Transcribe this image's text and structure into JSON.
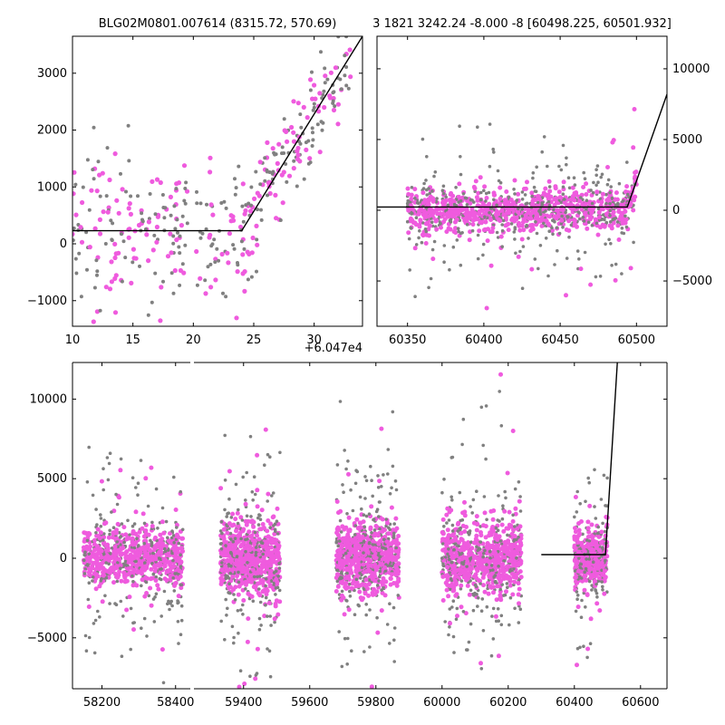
{
  "colors": {
    "gray": "#808080",
    "magenta": "#ef5bde",
    "line": "#000000"
  },
  "chart_data": [
    {
      "type": "scatter",
      "panel": "top-left",
      "title": "BLG02M0801.007614 (8315.72, 570.69)",
      "xlim": [
        10,
        34
      ],
      "ylim": [
        -1450,
        3650
      ],
      "x_offset_label": "+6.047e4",
      "xticks": [
        10,
        15,
        20,
        25,
        30
      ],
      "yticks": [
        -1000,
        0,
        1000,
        2000,
        3000
      ],
      "model_line": [
        [
          10,
          230
        ],
        [
          24,
          230
        ],
        [
          34,
          3650
        ]
      ]
    },
    {
      "type": "scatter",
      "panel": "top-right",
      "title": "3 1821 3242.24 -8.000 -8 [60498.225, 60501.932]",
      "xlim": [
        60330,
        60520
      ],
      "ylim": [
        -8200,
        12300
      ],
      "xticks": [
        60350,
        60400,
        60450,
        60500
      ],
      "yticks": [
        -5000,
        0,
        5000,
        10000
      ],
      "model_line": [
        [
          60330,
          230
        ],
        [
          60494,
          230
        ],
        [
          60520,
          8200
        ]
      ]
    },
    {
      "type": "scatter",
      "panel": "bottom",
      "title": "",
      "segments": [
        {
          "xlim": [
            58120,
            58440
          ],
          "xticks": [
            58200,
            58400
          ]
        },
        {
          "xlim": [
            59250,
            60680
          ],
          "xticks": [
            59400,
            59600,
            59800,
            60000,
            60200,
            60400,
            60600
          ]
        }
      ],
      "ylim": [
        -8200,
        12300
      ],
      "yticks": [
        -5000,
        0,
        5000,
        10000
      ],
      "model_line": [
        [
          60300,
          230
        ],
        [
          60494,
          230
        ],
        [
          60530,
          12300
        ]
      ]
    }
  ]
}
